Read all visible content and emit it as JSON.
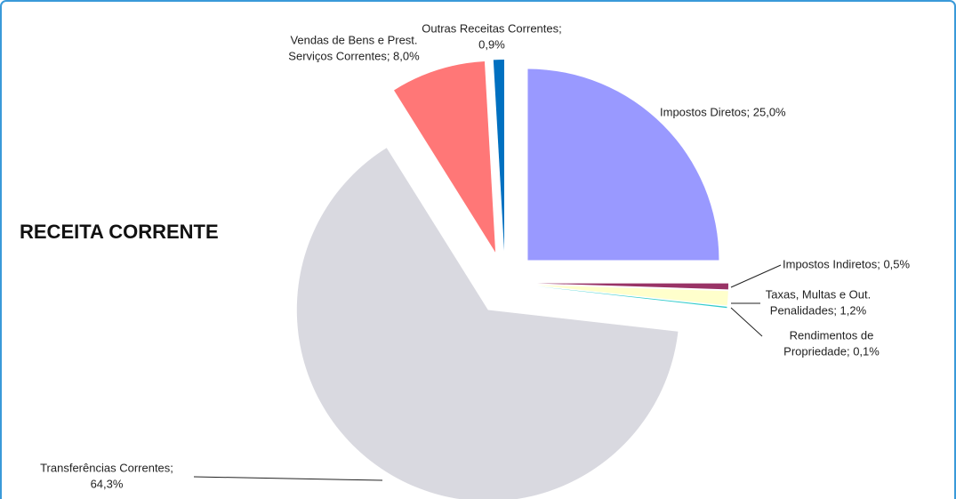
{
  "chart_data": {
    "type": "pie",
    "title": "RECEITA CORRENTE",
    "labels": [
      [
        "Impostos Diretos; 25,0%"
      ],
      [
        "Impostos Indiretos; 0,5%"
      ],
      [
        "Taxas, Multas e Out.",
        "Penalidades; 1,2%"
      ],
      [
        "Rendimentos de",
        "Propriedade; 0,1%"
      ],
      [
        "Transferências Correntes;",
        "64,3%"
      ],
      [
        "Vendas de Bens e Prest.",
        "Serviços Correntes; 8,0%"
      ],
      [
        "Outras Receitas Correntes;",
        "0,9%"
      ]
    ],
    "values": [
      25.0,
      0.5,
      1.2,
      0.1,
      64.3,
      8.0,
      0.9
    ],
    "colors": [
      "#9999ff",
      "#993366",
      "#ffffcc",
      "#33cccc",
      "#d9d9e0",
      "#ff7777",
      "#0070c0"
    ]
  }
}
